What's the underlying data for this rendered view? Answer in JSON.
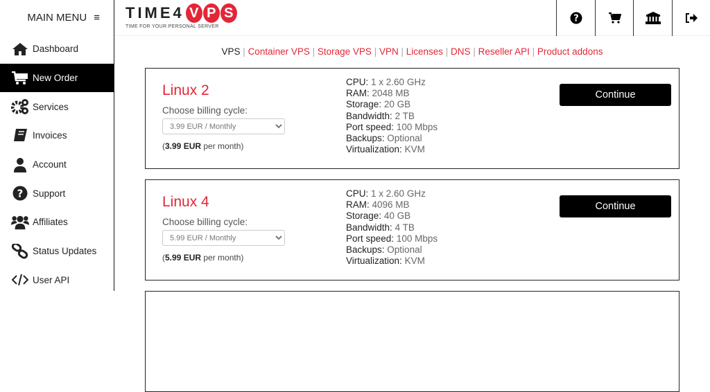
{
  "sidebar": {
    "title": "MAIN MENU",
    "items": [
      {
        "label": "Dashboard",
        "icon": "home-icon"
      },
      {
        "label": "New Order",
        "icon": "cart-icon",
        "active": true
      },
      {
        "label": "Services",
        "icon": "gears-icon"
      },
      {
        "label": "Invoices",
        "icon": "book-icon"
      },
      {
        "label": "Account",
        "icon": "user-icon"
      },
      {
        "label": "Support",
        "icon": "question-circle-icon"
      },
      {
        "label": "Affiliates",
        "icon": "users-icon"
      },
      {
        "label": "Status Updates",
        "icon": "link-icon"
      },
      {
        "label": "User API",
        "icon": "code-icon"
      }
    ]
  },
  "header": {
    "logo_text": "TIME4",
    "logo_vps": "VPS",
    "tagline": "TIME FOR YOUR PERSONAL SERVER"
  },
  "nav_links": [
    "VPS",
    "Container VPS",
    "Storage VPS",
    "VPN",
    "Licenses",
    "DNS",
    "Reseller API",
    "Product addons"
  ],
  "colors": {
    "accent": "#e32637"
  },
  "plans": [
    {
      "name": "Linux 2",
      "billing_label": "Choose billing cycle:",
      "billing_value": "3.99 EUR / Monthly",
      "price": "3.99 EUR",
      "price_suffix": "per month",
      "specs": [
        [
          "CPU:",
          "1 x 2.60 GHz"
        ],
        [
          "RAM:",
          "2048 MB"
        ],
        [
          "Storage:",
          "20 GB"
        ],
        [
          "Bandwidth:",
          "2 TB"
        ],
        [
          "Port speed:",
          "100 Mbps"
        ],
        [
          "Backups:",
          "Optional"
        ],
        [
          "Virtualization:",
          "KVM"
        ]
      ],
      "button": "Continue"
    },
    {
      "name": "Linux 4",
      "billing_label": "Choose billing cycle:",
      "billing_value": "5.99 EUR / Monthly",
      "price": "5.99 EUR",
      "price_suffix": "per month",
      "specs": [
        [
          "CPU:",
          "1 x 2.60 GHz"
        ],
        [
          "RAM:",
          "4096 MB"
        ],
        [
          "Storage:",
          "40 GB"
        ],
        [
          "Bandwidth:",
          "4 TB"
        ],
        [
          "Port speed:",
          "100 Mbps"
        ],
        [
          "Backups:",
          "Optional"
        ],
        [
          "Virtualization:",
          "KVM"
        ]
      ],
      "button": "Continue"
    }
  ]
}
